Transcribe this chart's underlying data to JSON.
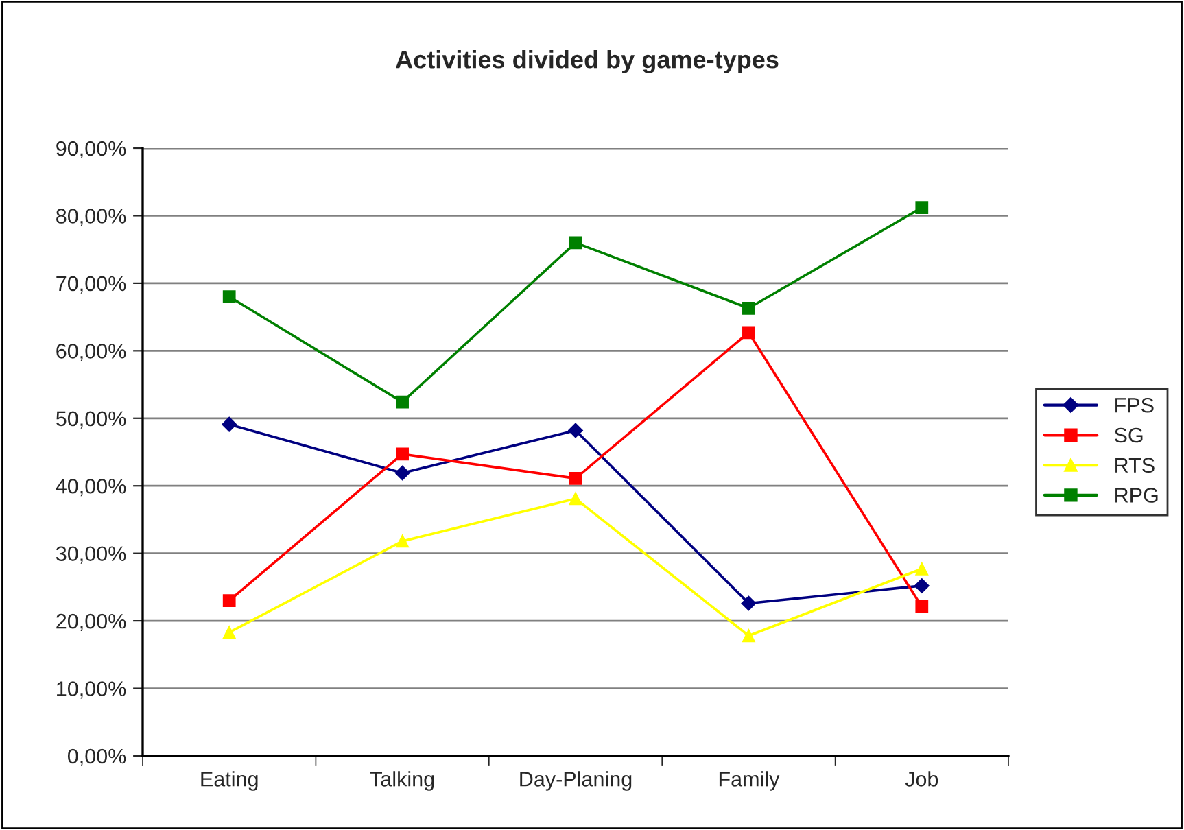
{
  "chart_data": {
    "type": "line",
    "title": "Activities divided by game-types",
    "categories": [
      "Eating",
      "Talking",
      "Day-Planing",
      "Family",
      "Job"
    ],
    "series": [
      {
        "name": "FPS",
        "color": "#000080",
        "marker": "diamond",
        "values": [
          49.1,
          41.9,
          48.2,
          22.6,
          25.2
        ]
      },
      {
        "name": "SG",
        "color": "#ff0000",
        "marker": "square",
        "values": [
          23.0,
          44.7,
          41.1,
          62.7,
          22.1
        ]
      },
      {
        "name": "RTS",
        "color": "#ffff00",
        "marker": "triangle",
        "values": [
          18.3,
          31.8,
          38.1,
          17.8,
          27.7
        ]
      },
      {
        "name": "RPG",
        "color": "#008000",
        "marker": "square",
        "values": [
          68.0,
          52.4,
          76.0,
          66.3,
          81.2
        ]
      }
    ],
    "ylim": [
      0,
      90
    ],
    "yticks": [
      {
        "value": 0,
        "label": "0,00%"
      },
      {
        "value": 10,
        "label": "10,00%"
      },
      {
        "value": 20,
        "label": "20,00%"
      },
      {
        "value": 30,
        "label": "30,00%"
      },
      {
        "value": 40,
        "label": "40,00%"
      },
      {
        "value": 50,
        "label": "50,00%"
      },
      {
        "value": 60,
        "label": "60,00%"
      },
      {
        "value": 70,
        "label": "70,00%"
      },
      {
        "value": 80,
        "label": "80,00%"
      },
      {
        "value": 90,
        "label": "90,00%"
      }
    ],
    "grid": "y",
    "legend": "right",
    "line_style": "solid"
  }
}
